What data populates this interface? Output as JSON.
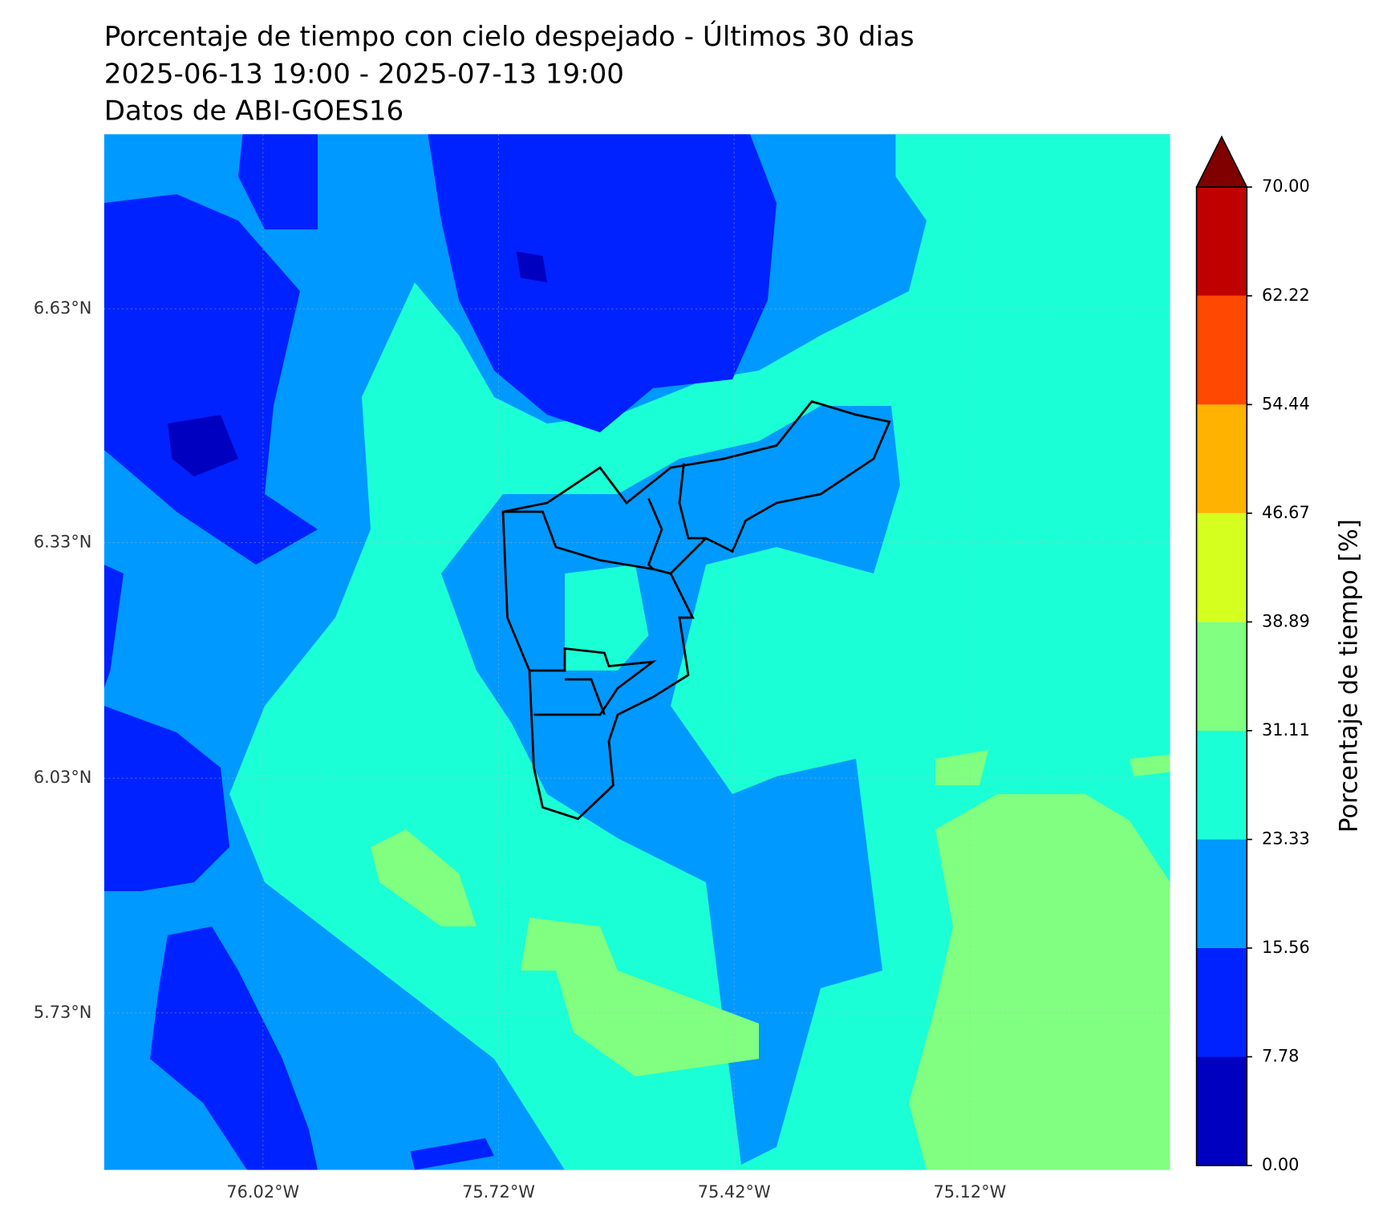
{
  "header": {
    "title_lines": [
      "Porcentaje de tiempo con cielo despejado - Últimos 30 dias",
      "2025-06-13 19:00 - 2025-07-13 19:00",
      "Datos de ABI-GOES16"
    ]
  },
  "map": {
    "lat_labels": [
      "6.63°N",
      "6.33°N",
      "6.03°N",
      "5.73°N"
    ],
    "lon_labels": [
      "76.02°W",
      "75.72°W",
      "75.42°W",
      "75.12°W"
    ]
  },
  "colorbar": {
    "label": "Porcentaje de tiempo [%]",
    "lim": [
      0,
      70
    ],
    "ticks": [
      {
        "value": 0,
        "label": "0.00"
      },
      7.78,
      15.56,
      23.33,
      31.11,
      38.89,
      46.67,
      54.44,
      62.22,
      {
        "value": 70,
        "label": "70.00"
      }
    ],
    "colors": [
      "#0000c0",
      "#0022ff",
      "#0099ff",
      "#1affd5",
      "#80ff80",
      "#d4ff1f",
      "#ffb300",
      "#ff4800",
      "#c00000"
    ],
    "extend_color": "#800000"
  }
}
